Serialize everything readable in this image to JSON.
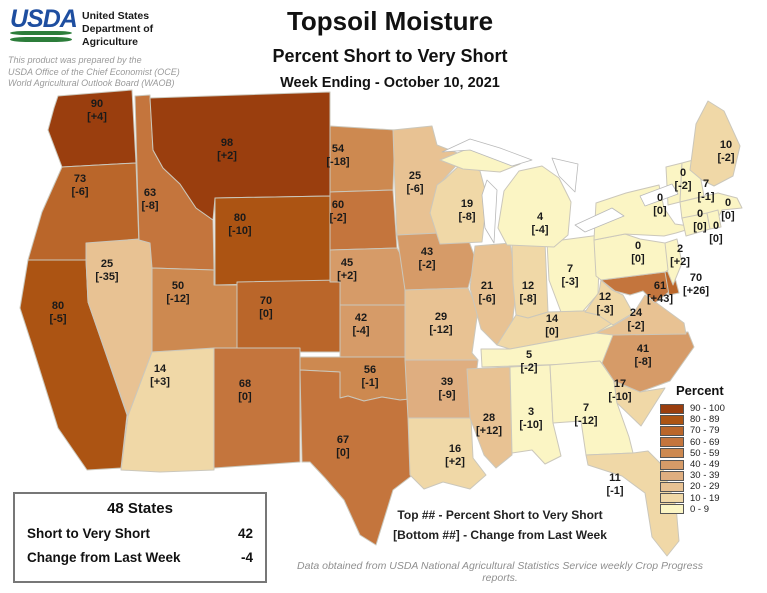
{
  "header": {
    "logo_acronym": "USDA",
    "dept_lines": [
      "United States",
      "Department of",
      "Agriculture"
    ],
    "prepared_note_lines": [
      "This product was prepared by the",
      "USDA Office of the Chief Economist (OCE)",
      "World Agricultural Outlook Board (WAOB)"
    ]
  },
  "title_block": {
    "title": "Topsoil Moisture",
    "subtitle": "Percent Short to Very Short",
    "week": "Week Ending - October 10, 2021"
  },
  "footnotes": {
    "top_note": "Top ## - Percent Short to Very Short",
    "bottom_note": "[Bottom ##] - Change from Last Week",
    "source_note": "Data obtained from USDA National Agricultural Statistics Service weekly Crop Progress reports."
  },
  "summary_box": {
    "title": "48 States",
    "rows": [
      {
        "label": "Short to Very Short",
        "value": "42"
      },
      {
        "label": "Change from Last Week",
        "value": "-4"
      }
    ]
  },
  "colors": {
    "logo_blue": "#1e4ea0",
    "logo_green": "#2c7d3a",
    "label_text": "#1a1a1a",
    "state_border": "#cbc7bb",
    "water": "#ffffff"
  },
  "chart_data": {
    "type": "choropleth",
    "title": "Topsoil Moisture - Percent Short to Very Short",
    "week_ending": "October 10, 2021",
    "value_meaning": "Percent Short to Very Short (top number)",
    "change_meaning": "Change from Last Week (bottom bracketed number)",
    "legend": {
      "title": "Percent",
      "position": "right",
      "bins": [
        {
          "label": "90 - 100",
          "min": 90,
          "max": 100,
          "color": "#9a3e0e"
        },
        {
          "label": "80 - 89",
          "min": 80,
          "max": 89,
          "color": "#ac5413"
        },
        {
          "label": "70 - 79",
          "min": 70,
          "max": 79,
          "color": "#ba662a"
        },
        {
          "label": "60 - 69",
          "min": 60,
          "max": 69,
          "color": "#c4753d"
        },
        {
          "label": "50 - 59",
          "min": 50,
          "max": 59,
          "color": "#cd8950"
        },
        {
          "label": "40 - 49",
          "min": 40,
          "max": 49,
          "color": "#d69b68"
        },
        {
          "label": "30 - 39",
          "min": 30,
          "max": 39,
          "color": "#dfae80"
        },
        {
          "label": "20 - 29",
          "min": 20,
          "max": 29,
          "color": "#e8c293"
        },
        {
          "label": "10 - 19",
          "min": 10,
          "max": 19,
          "color": "#f0d8a7"
        },
        {
          "label": "0 - 9",
          "min": 0,
          "max": 9,
          "color": "#fbf5c4"
        }
      ]
    },
    "states": [
      {
        "abbr": "WA",
        "name": "Washington",
        "value": 90,
        "change": "+4"
      },
      {
        "abbr": "OR",
        "name": "Oregon",
        "value": 73,
        "change": "-6"
      },
      {
        "abbr": "CA",
        "name": "California",
        "value": 80,
        "change": "-5"
      },
      {
        "abbr": "NV",
        "name": "Nevada",
        "value": 25,
        "change": "-35"
      },
      {
        "abbr": "ID",
        "name": "Idaho",
        "value": 63,
        "change": "-8"
      },
      {
        "abbr": "MT",
        "name": "Montana",
        "value": 98,
        "change": "+2"
      },
      {
        "abbr": "WY",
        "name": "Wyoming",
        "value": 80,
        "change": "-10"
      },
      {
        "abbr": "UT",
        "name": "Utah",
        "value": 50,
        "change": "-12"
      },
      {
        "abbr": "CO",
        "name": "Colorado",
        "value": 70,
        "change": "0"
      },
      {
        "abbr": "AZ",
        "name": "Arizona",
        "value": 14,
        "change": "+3"
      },
      {
        "abbr": "NM",
        "name": "New Mexico",
        "value": 68,
        "change": "0"
      },
      {
        "abbr": "ND",
        "name": "North Dakota",
        "value": 54,
        "change": "-18"
      },
      {
        "abbr": "SD",
        "name": "South Dakota",
        "value": 60,
        "change": "-2"
      },
      {
        "abbr": "NE",
        "name": "Nebraska",
        "value": 45,
        "change": "+2"
      },
      {
        "abbr": "KS",
        "name": "Kansas",
        "value": 42,
        "change": "-4"
      },
      {
        "abbr": "OK",
        "name": "Oklahoma",
        "value": 56,
        "change": "-1"
      },
      {
        "abbr": "TX",
        "name": "Texas",
        "value": 67,
        "change": "0"
      },
      {
        "abbr": "MN",
        "name": "Minnesota",
        "value": 25,
        "change": "-6"
      },
      {
        "abbr": "IA",
        "name": "Iowa",
        "value": 43,
        "change": "-2"
      },
      {
        "abbr": "MO",
        "name": "Missouri",
        "value": 29,
        "change": "-12"
      },
      {
        "abbr": "AR",
        "name": "Arkansas",
        "value": 39,
        "change": "-9"
      },
      {
        "abbr": "LA",
        "name": "Louisiana",
        "value": 16,
        "change": "+2"
      },
      {
        "abbr": "WI",
        "name": "Wisconsin",
        "value": 19,
        "change": "-8"
      },
      {
        "abbr": "IL",
        "name": "Illinois",
        "value": 21,
        "change": "-6"
      },
      {
        "abbr": "IN",
        "name": "Indiana",
        "value": 12,
        "change": "-8"
      },
      {
        "abbr": "OH",
        "name": "Ohio",
        "value": 7,
        "change": "-3"
      },
      {
        "abbr": "MI",
        "name": "Michigan",
        "value": 4,
        "change": "-4"
      },
      {
        "abbr": "KY",
        "name": "Kentucky",
        "value": 14,
        "change": "0"
      },
      {
        "abbr": "TN",
        "name": "Tennessee",
        "value": 5,
        "change": "-2"
      },
      {
        "abbr": "MS",
        "name": "Mississippi",
        "value": 28,
        "change": "+12"
      },
      {
        "abbr": "AL",
        "name": "Alabama",
        "value": 3,
        "change": "-10"
      },
      {
        "abbr": "GA",
        "name": "Georgia",
        "value": 7,
        "change": "-12"
      },
      {
        "abbr": "FL",
        "name": "Florida",
        "value": 11,
        "change": "-1"
      },
      {
        "abbr": "SC",
        "name": "South Carolina",
        "value": 17,
        "change": "-10"
      },
      {
        "abbr": "NC",
        "name": "North Carolina",
        "value": 41,
        "change": "-8"
      },
      {
        "abbr": "VA",
        "name": "Virginia",
        "value": 24,
        "change": "-2"
      },
      {
        "abbr": "WV",
        "name": "West Virginia",
        "value": 12,
        "change": "-3"
      },
      {
        "abbr": "MD",
        "name": "Maryland",
        "value": 61,
        "change": "+43"
      },
      {
        "abbr": "DE",
        "name": "Delaware",
        "value": 70,
        "change": "+26"
      },
      {
        "abbr": "NJ",
        "name": "New Jersey",
        "value": 2,
        "change": "+2"
      },
      {
        "abbr": "PA",
        "name": "Pennsylvania",
        "value": 0,
        "change": "0"
      },
      {
        "abbr": "NY",
        "name": "New York",
        "value": 0,
        "change": "0"
      },
      {
        "abbr": "VT",
        "name": "Vermont",
        "value": 0,
        "change": "-2"
      },
      {
        "abbr": "NH",
        "name": "New Hampshire",
        "value": 7,
        "change": "-1"
      },
      {
        "abbr": "ME",
        "name": "Maine",
        "value": 10,
        "change": "-2"
      },
      {
        "abbr": "MA",
        "name": "Massachusetts",
        "value": 0,
        "change": "0"
      },
      {
        "abbr": "CT",
        "name": "Connecticut",
        "value": 0,
        "change": "0"
      },
      {
        "abbr": "RI",
        "name": "Rhode Island",
        "value": 0,
        "change": "0"
      }
    ]
  }
}
